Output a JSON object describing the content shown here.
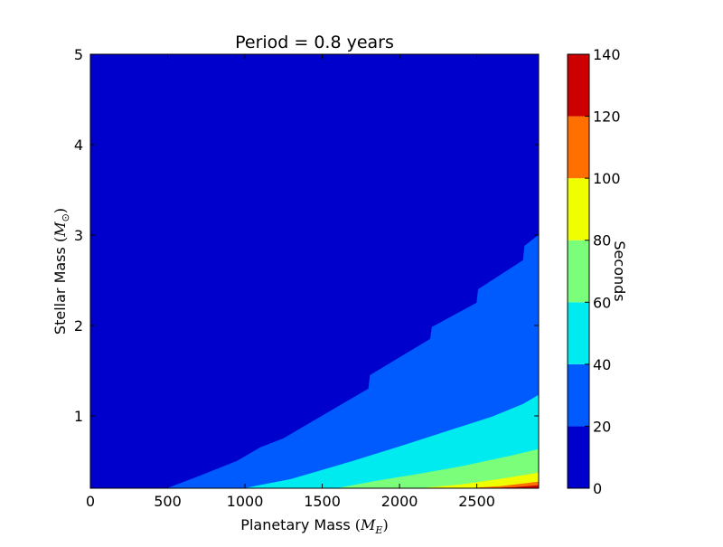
{
  "chart_data": {
    "type": "heatmap",
    "subtype": "filled-contour",
    "title": "Period = 0.8 years",
    "xlabel": {
      "text": "Planetary Mass",
      "math_symbol": "M",
      "math_sub": "E"
    },
    "ylabel": {
      "text": "Stellar Mass",
      "math_symbol": "M",
      "math_sub": "⊙"
    },
    "xlim": [
      0,
      2900
    ],
    "ylim": [
      0.2,
      5
    ],
    "x_ticks": [
      0,
      500,
      1000,
      1500,
      2000,
      2500
    ],
    "y_ticks": [
      1,
      2,
      3,
      4,
      5
    ],
    "colorbar": {
      "label": "Seconds",
      "ticks": [
        0,
        20,
        40,
        60,
        80,
        100,
        120,
        140
      ],
      "levels": [
        {
          "from": 0,
          "to": 20,
          "color": "#0000cd"
        },
        {
          "from": 20,
          "to": 40,
          "color": "#005bff"
        },
        {
          "from": 40,
          "to": 60,
          "color": "#00ebf0"
        },
        {
          "from": 60,
          "to": 80,
          "color": "#7bff7b"
        },
        {
          "from": 80,
          "to": 100,
          "color": "#f0ff00"
        },
        {
          "from": 100,
          "to": 120,
          "color": "#ff7000"
        },
        {
          "from": 120,
          "to": 140,
          "color": "#cd0000"
        }
      ]
    },
    "contours": [
      {
        "level": 20,
        "points": [
          [
            500,
            0.2
          ],
          [
            700,
            0.33
          ],
          [
            950,
            0.5
          ],
          [
            1100,
            0.65
          ],
          [
            1250,
            0.75
          ],
          [
            1500,
            1.0
          ],
          [
            1800,
            1.3
          ],
          [
            1810,
            1.45
          ],
          [
            2200,
            1.85
          ],
          [
            2210,
            1.98
          ],
          [
            2500,
            2.25
          ],
          [
            2510,
            2.4
          ],
          [
            2800,
            2.72
          ],
          [
            2810,
            2.88
          ],
          [
            2900,
            3.0
          ]
        ]
      },
      {
        "level": 40,
        "points": [
          [
            1000,
            0.2
          ],
          [
            1300,
            0.3
          ],
          [
            1500,
            0.4
          ],
          [
            1700,
            0.5
          ],
          [
            1850,
            0.58
          ],
          [
            2000,
            0.66
          ],
          [
            2200,
            0.77
          ],
          [
            2400,
            0.88
          ],
          [
            2600,
            0.99
          ],
          [
            2800,
            1.13
          ],
          [
            2900,
            1.23
          ]
        ]
      },
      {
        "level": 60,
        "points": [
          [
            1600,
            0.2
          ],
          [
            1850,
            0.28
          ],
          [
            2100,
            0.35
          ],
          [
            2400,
            0.44
          ],
          [
            2700,
            0.55
          ],
          [
            2900,
            0.63
          ]
        ]
      },
      {
        "level": 80,
        "points": [
          [
            2150,
            0.2
          ],
          [
            2400,
            0.24
          ],
          [
            2650,
            0.3
          ],
          [
            2900,
            0.37
          ]
        ]
      },
      {
        "level": 100,
        "points": [
          [
            2450,
            0.2
          ],
          [
            2650,
            0.22
          ],
          [
            2800,
            0.25
          ],
          [
            2900,
            0.27
          ]
        ]
      },
      {
        "level": 120,
        "points": [
          [
            2600,
            0.2
          ],
          [
            2750,
            0.21
          ],
          [
            2900,
            0.23
          ]
        ]
      }
    ]
  }
}
